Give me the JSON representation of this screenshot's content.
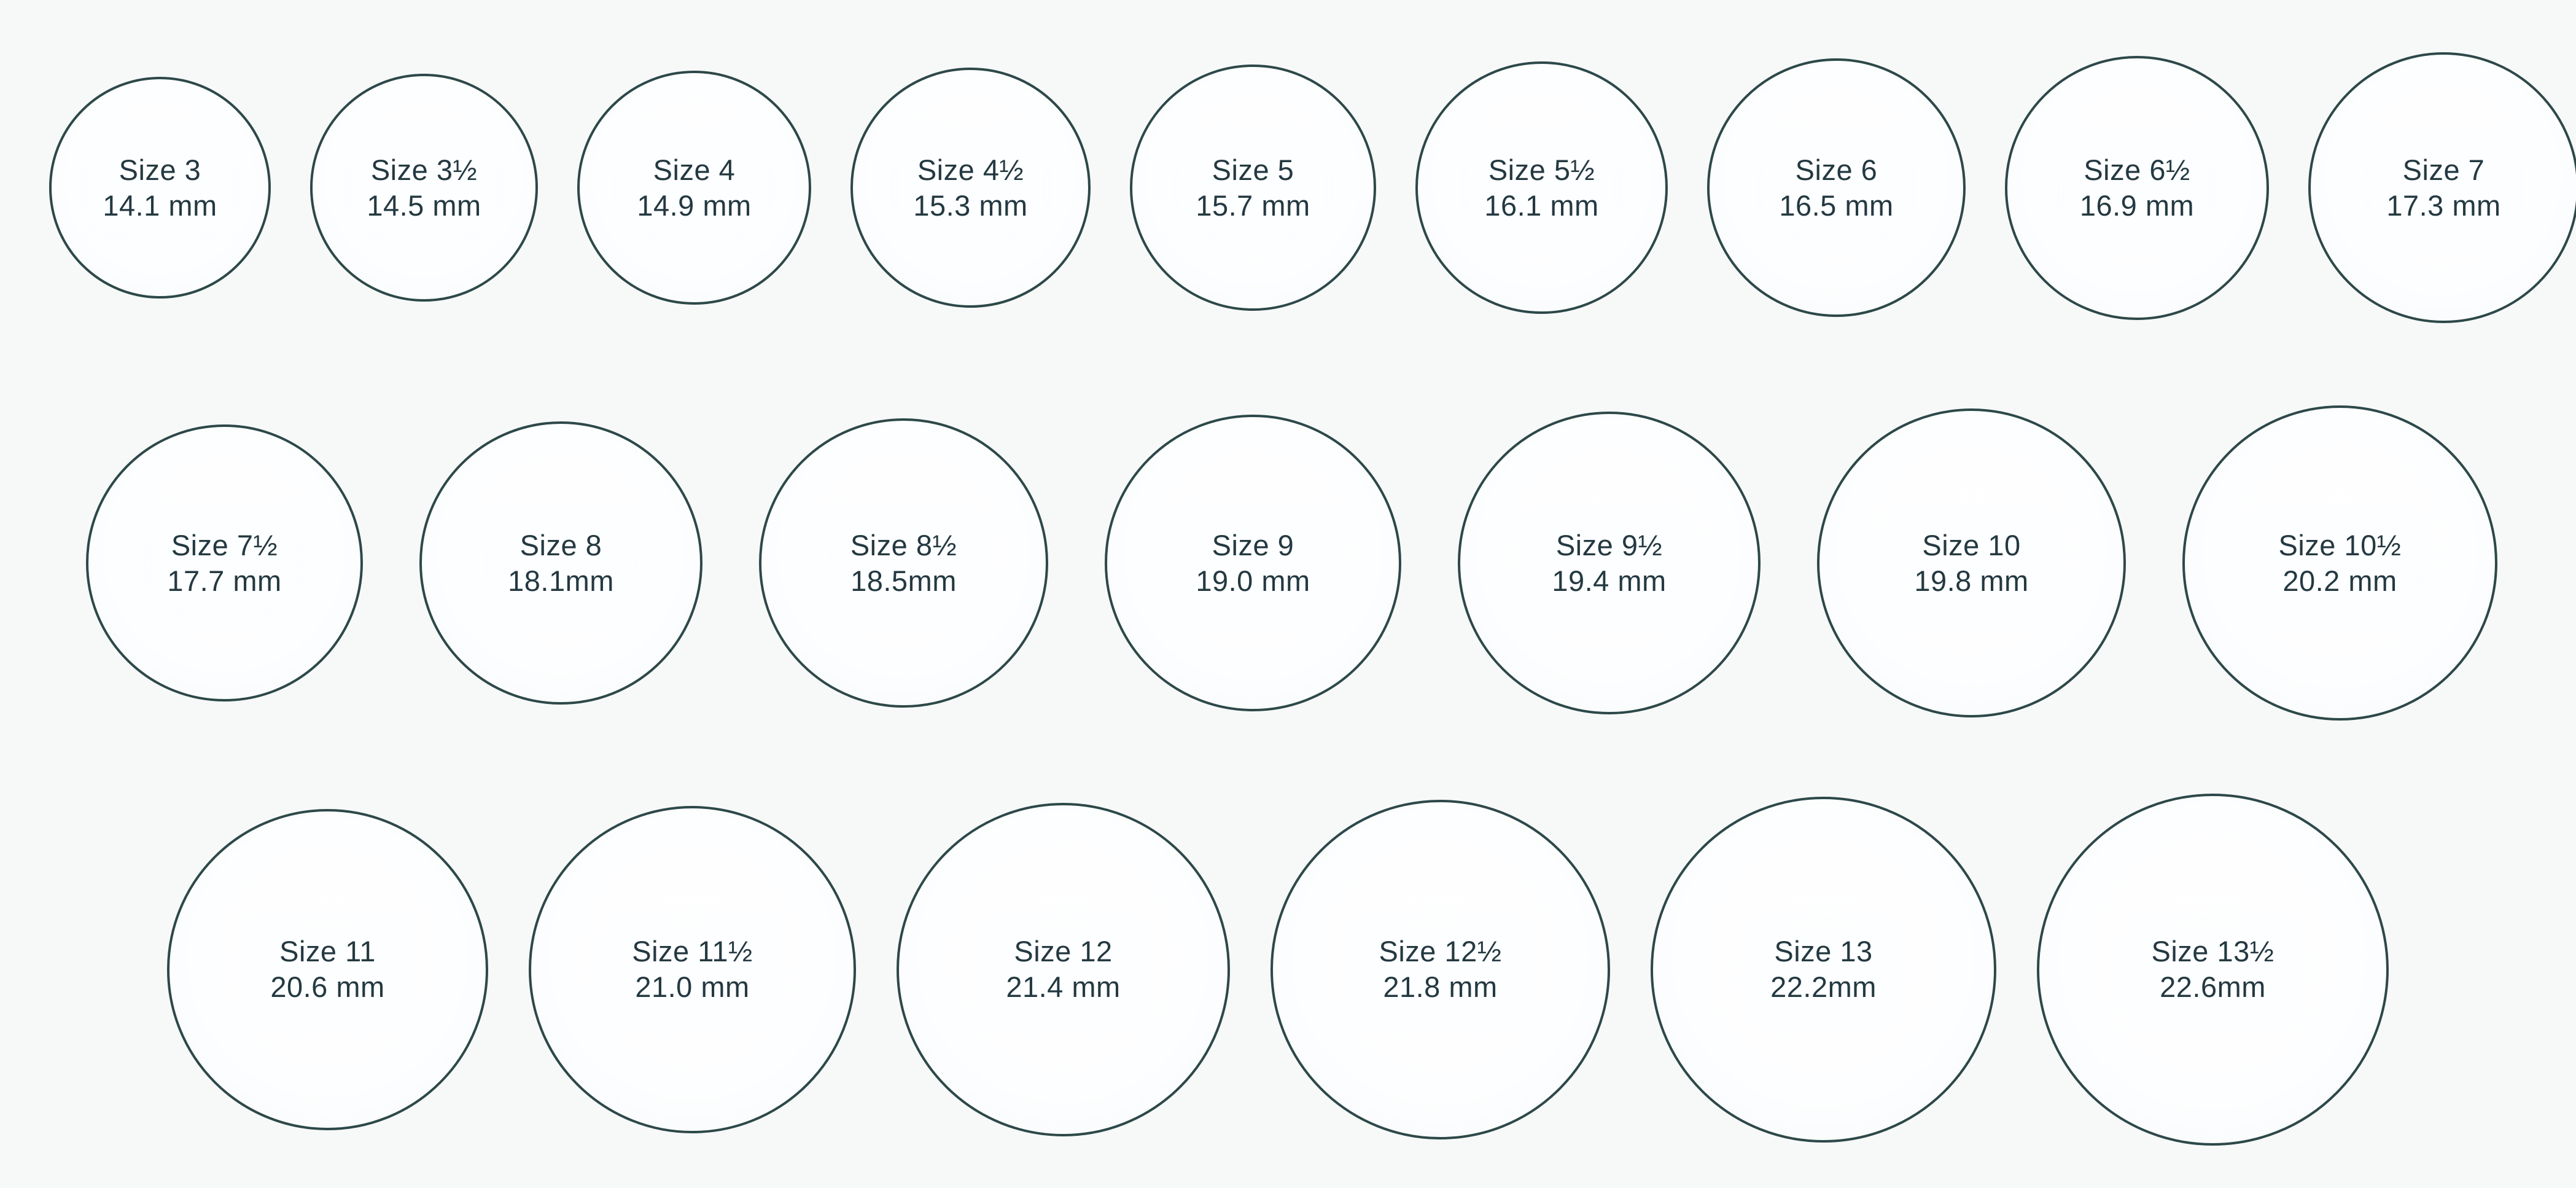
{
  "chart": {
    "kind": "ring-size-chart",
    "stroke_color": "#2d4848",
    "text_color": "#243941",
    "background_color": "#f7f8f8",
    "rows": [
      {
        "rings": [
          {
            "size_label": "Size 3",
            "mm_label": "14.1 mm",
            "diameter_mm": 14.1
          },
          {
            "size_label": "Size 3½",
            "mm_label": "14.5 mm",
            "diameter_mm": 14.5
          },
          {
            "size_label": "Size 4",
            "mm_label": "14.9 mm",
            "diameter_mm": 14.9
          },
          {
            "size_label": "Size 4½",
            "mm_label": "15.3 mm",
            "diameter_mm": 15.3
          },
          {
            "size_label": "Size 5",
            "mm_label": "15.7 mm",
            "diameter_mm": 15.7
          },
          {
            "size_label": "Size 5½",
            "mm_label": "16.1 mm",
            "diameter_mm": 16.1
          },
          {
            "size_label": "Size 6",
            "mm_label": "16.5 mm",
            "diameter_mm": 16.5
          },
          {
            "size_label": "Size 6½",
            "mm_label": "16.9 mm",
            "diameter_mm": 16.9
          },
          {
            "size_label": "Size 7",
            "mm_label": "17.3 mm",
            "diameter_mm": 17.3
          }
        ]
      },
      {
        "rings": [
          {
            "size_label": "Size 7½",
            "mm_label": "17.7 mm",
            "diameter_mm": 17.7
          },
          {
            "size_label": "Size 8",
            "mm_label": "18.1mm",
            "diameter_mm": 18.1
          },
          {
            "size_label": "Size 8½",
            "mm_label": "18.5mm",
            "diameter_mm": 18.5
          },
          {
            "size_label": "Size 9",
            "mm_label": "19.0 mm",
            "diameter_mm": 19.0
          },
          {
            "size_label": "Size 9½",
            "mm_label": "19.4 mm",
            "diameter_mm": 19.4
          },
          {
            "size_label": "Size 10",
            "mm_label": "19.8 mm",
            "diameter_mm": 19.8
          },
          {
            "size_label": "Size 10½",
            "mm_label": "20.2 mm",
            "diameter_mm": 20.2
          }
        ]
      },
      {
        "rings": [
          {
            "size_label": "Size 11",
            "mm_label": "20.6 mm",
            "diameter_mm": 20.6
          },
          {
            "size_label": "Size 11½",
            "mm_label": "21.0 mm",
            "diameter_mm": 21.0
          },
          {
            "size_label": "Size 12",
            "mm_label": "21.4 mm",
            "diameter_mm": 21.4
          },
          {
            "size_label": "Size 12½",
            "mm_label": "21.8 mm",
            "diameter_mm": 21.8
          },
          {
            "size_label": "Size 13",
            "mm_label": "22.2mm",
            "diameter_mm": 22.2
          },
          {
            "size_label": "Size 13½",
            "mm_label": "22.6mm",
            "diameter_mm": 22.6
          }
        ]
      }
    ]
  }
}
